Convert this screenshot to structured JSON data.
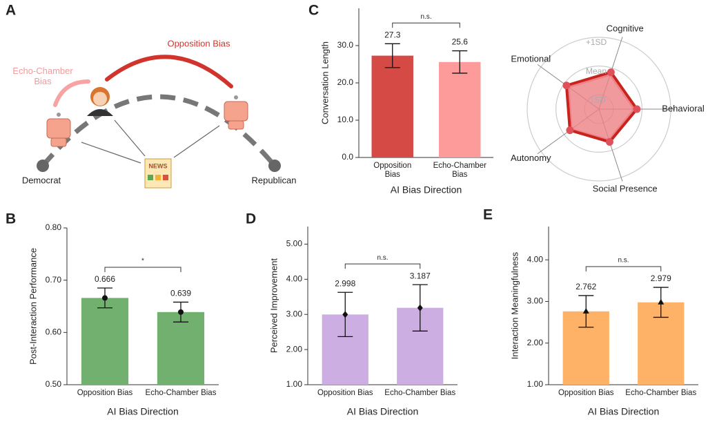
{
  "panel_labels": [
    "A",
    "B",
    "C",
    "D",
    "E"
  ],
  "diagram": {
    "opposition_label": "Opposition Bias",
    "echo_label": "Echo-Chamber Bias",
    "left_label": "Democrat",
    "right_label": "Republican",
    "news_label": "NEWS"
  },
  "chart_data": [
    {
      "type": "bar",
      "categories": [
        "Opposition Bias",
        "Echo-Chamber Bias"
      ],
      "values": [
        27.3,
        25.6
      ],
      "errors": [
        3.2,
        3.0
      ],
      "colors": [
        "#d64a45",
        "#fd9b9b"
      ],
      "ylim": [
        0,
        40
      ],
      "yticks": [
        {
          "value": 0,
          "label": "0.0"
        },
        {
          "value": 10,
          "label": "10.0"
        },
        {
          "value": 20,
          "label": "20.0"
        },
        {
          "value": 30,
          "label": "30.0"
        }
      ],
      "x_label": "AI Bias Direction",
      "y_label": "Conversation Length",
      "annotation": "n.s."
    },
    {
      "type": "radar",
      "axes": [
        "Cognitive",
        "Behavioral",
        "Social Presence",
        "Autonomy",
        "Emotional"
      ],
      "rlim": [
        -1.5,
        1
      ],
      "rticks": [
        {
          "value": 1,
          "label": "+1SD"
        },
        {
          "value": 0,
          "label": "Mean"
        },
        {
          "value": -1,
          "label": "-1SD"
        }
      ],
      "series": [
        {
          "color": "#c8231c",
          "fill": "#e8646a",
          "values": [
            -0.15,
            -0.18,
            -0.3,
            -0.25,
            -0.1
          ]
        },
        {
          "color": "#f6a5a7",
          "fill": "#f8c0c2",
          "values": [
            -0.25,
            -0.28,
            -0.38,
            -0.32,
            -0.2
          ]
        }
      ]
    },
    {
      "type": "bar",
      "categories": [
        "Opposition Bias",
        "Echo-Chamber Bias"
      ],
      "values": [
        0.666,
        0.639
      ],
      "errors": [
        0.019,
        0.019
      ],
      "colors": [
        "#72b06f",
        "#72b06f"
      ],
      "marker": "circle",
      "ylim": [
        0.5,
        0.8
      ],
      "yticks": [
        {
          "value": 0.5,
          "label": "0.50"
        },
        {
          "value": 0.6,
          "label": "0.60"
        },
        {
          "value": 0.7,
          "label": "0.70"
        },
        {
          "value": 0.8,
          "label": "0.80"
        }
      ],
      "x_label": "AI Bias Direction",
      "y_label": "Post-Interaction Performance",
      "annotation": "*"
    },
    {
      "type": "bar",
      "categories": [
        "Opposition Bias",
        "Echo-Chamber Bias"
      ],
      "values": [
        2.998,
        3.187
      ],
      "errors": [
        0.63,
        0.66
      ],
      "colors": [
        "#cdaee3",
        "#cdaee3"
      ],
      "marker": "diamond",
      "ylim": [
        1,
        5.5
      ],
      "yticks": [
        {
          "value": 1,
          "label": "1.00"
        },
        {
          "value": 2,
          "label": "2.00"
        },
        {
          "value": 3,
          "label": "3.00"
        },
        {
          "value": 4,
          "label": "4.00"
        },
        {
          "value": 5,
          "label": "5.00"
        }
      ],
      "x_label": "AI Bias Direction",
      "y_label": "Perceived Improvement",
      "annotation": "n.s."
    },
    {
      "type": "bar",
      "categories": [
        "Opposition Bias",
        "Echo-Chamber Bias"
      ],
      "values": [
        2.762,
        2.979
      ],
      "errors": [
        0.38,
        0.36
      ],
      "colors": [
        "#fdb268",
        "#fdb268"
      ],
      "marker": "triangle",
      "ylim": [
        1,
        4.8
      ],
      "yticks": [
        {
          "value": 1,
          "label": "1.00"
        },
        {
          "value": 2,
          "label": "2.00"
        },
        {
          "value": 3,
          "label": "3.00"
        },
        {
          "value": 4,
          "label": "4.00"
        }
      ],
      "x_label": "AI Bias Direction",
      "y_label": "Interaction Meaningfulness",
      "annotation": "n.s."
    }
  ]
}
